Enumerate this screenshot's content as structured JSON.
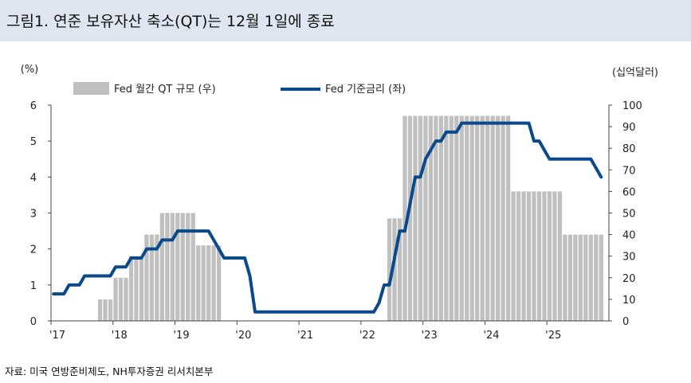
{
  "title": "그림1. 연준 보유자산 축소(QT)는 12월 1일에 종료",
  "source": "자료: 미국 연방준비제도, NH투자증권 리서치본부",
  "colors": {
    "title_bg": "#dfe6ef",
    "bar": "#c0c0c0",
    "line": "#0a4a8c"
  },
  "chart_data": {
    "type": "bar+line",
    "left_axis": {
      "unit": "(%)",
      "ticks": [
        "0",
        "1",
        "2",
        "3",
        "4",
        "5",
        "6"
      ],
      "ylim": [
        0,
        6
      ]
    },
    "right_axis": {
      "unit": "(십억달러)",
      "ticks": [
        "0",
        "10",
        "20",
        "30",
        "40",
        "50",
        "60",
        "70",
        "80",
        "90",
        "100"
      ],
      "ylim": [
        0,
        100
      ]
    },
    "x_ticks": [
      "'17",
      "'18",
      "'19",
      "'20",
      "'21",
      "'22",
      "'23",
      "'24",
      "'25"
    ],
    "grid": false,
    "legend_position": "top",
    "series": [
      {
        "name": "Fed 월간 QT 규모 (우)",
        "type": "bar",
        "axis": "right",
        "points": [
          {
            "x": "2017-10",
            "y": 10
          },
          {
            "x": "2017-11",
            "y": 10
          },
          {
            "x": "2017-12",
            "y": 10
          },
          {
            "x": "2018-01",
            "y": 20
          },
          {
            "x": "2018-02",
            "y": 20
          },
          {
            "x": "2018-03",
            "y": 20
          },
          {
            "x": "2018-04",
            "y": 30
          },
          {
            "x": "2018-05",
            "y": 30
          },
          {
            "x": "2018-06",
            "y": 30
          },
          {
            "x": "2018-07",
            "y": 40
          },
          {
            "x": "2018-08",
            "y": 40
          },
          {
            "x": "2018-09",
            "y": 40
          },
          {
            "x": "2018-10",
            "y": 50
          },
          {
            "x": "2018-11",
            "y": 50
          },
          {
            "x": "2018-12",
            "y": 50
          },
          {
            "x": "2019-01",
            "y": 50
          },
          {
            "x": "2019-02",
            "y": 50
          },
          {
            "x": "2019-03",
            "y": 50
          },
          {
            "x": "2019-04",
            "y": 50
          },
          {
            "x": "2019-05",
            "y": 35
          },
          {
            "x": "2019-06",
            "y": 35
          },
          {
            "x": "2019-07",
            "y": 35
          },
          {
            "x": "2019-08",
            "y": 35
          },
          {
            "x": "2019-09",
            "y": 35
          },
          {
            "x": "2022-06",
            "y": 47.5
          },
          {
            "x": "2022-07",
            "y": 47.5
          },
          {
            "x": "2022-08",
            "y": 47.5
          },
          {
            "x": "2022-09",
            "y": 95
          },
          {
            "x": "2022-10",
            "y": 95
          },
          {
            "x": "2022-11",
            "y": 95
          },
          {
            "x": "2022-12",
            "y": 95
          },
          {
            "x": "2023-01",
            "y": 95
          },
          {
            "x": "2023-02",
            "y": 95
          },
          {
            "x": "2023-03",
            "y": 95
          },
          {
            "x": "2023-04",
            "y": 95
          },
          {
            "x": "2023-05",
            "y": 95
          },
          {
            "x": "2023-06",
            "y": 95
          },
          {
            "x": "2023-07",
            "y": 95
          },
          {
            "x": "2023-08",
            "y": 95
          },
          {
            "x": "2023-09",
            "y": 95
          },
          {
            "x": "2023-10",
            "y": 95
          },
          {
            "x": "2023-11",
            "y": 95
          },
          {
            "x": "2023-12",
            "y": 95
          },
          {
            "x": "2024-01",
            "y": 95
          },
          {
            "x": "2024-02",
            "y": 95
          },
          {
            "x": "2024-03",
            "y": 95
          },
          {
            "x": "2024-04",
            "y": 95
          },
          {
            "x": "2024-05",
            "y": 95
          },
          {
            "x": "2024-06",
            "y": 60
          },
          {
            "x": "2024-07",
            "y": 60
          },
          {
            "x": "2024-08",
            "y": 60
          },
          {
            "x": "2024-09",
            "y": 60
          },
          {
            "x": "2024-10",
            "y": 60
          },
          {
            "x": "2024-11",
            "y": 60
          },
          {
            "x": "2024-12",
            "y": 60
          },
          {
            "x": "2025-01",
            "y": 60
          },
          {
            "x": "2025-02",
            "y": 60
          },
          {
            "x": "2025-03",
            "y": 60
          },
          {
            "x": "2025-04",
            "y": 40
          },
          {
            "x": "2025-05",
            "y": 40
          },
          {
            "x": "2025-06",
            "y": 40
          },
          {
            "x": "2025-07",
            "y": 40
          },
          {
            "x": "2025-08",
            "y": 40
          },
          {
            "x": "2025-09",
            "y": 40
          },
          {
            "x": "2025-10",
            "y": 40
          },
          {
            "x": "2025-11",
            "y": 40
          }
        ]
      },
      {
        "name": "Fed 기준금리 (좌)",
        "type": "line",
        "axis": "left",
        "points": [
          {
            "x": "2017-01",
            "y": 0.75
          },
          {
            "x": "2017-03",
            "y": 0.75
          },
          {
            "x": "2017-04",
            "y": 1.0
          },
          {
            "x": "2017-06",
            "y": 1.0
          },
          {
            "x": "2017-07",
            "y": 1.25
          },
          {
            "x": "2017-12",
            "y": 1.25
          },
          {
            "x": "2018-01",
            "y": 1.5
          },
          {
            "x": "2018-03",
            "y": 1.5
          },
          {
            "x": "2018-04",
            "y": 1.75
          },
          {
            "x": "2018-06",
            "y": 1.75
          },
          {
            "x": "2018-07",
            "y": 2.0
          },
          {
            "x": "2018-09",
            "y": 2.0
          },
          {
            "x": "2018-10",
            "y": 2.25
          },
          {
            "x": "2018-12",
            "y": 2.25
          },
          {
            "x": "2019-01",
            "y": 2.5
          },
          {
            "x": "2019-07",
            "y": 2.5
          },
          {
            "x": "2019-08",
            "y": 2.25
          },
          {
            "x": "2019-09",
            "y": 2.0
          },
          {
            "x": "2019-10",
            "y": 1.75
          },
          {
            "x": "2020-02",
            "y": 1.75
          },
          {
            "x": "2020-03",
            "y": 1.25
          },
          {
            "x": "2020-04",
            "y": 0.25
          },
          {
            "x": "2022-03",
            "y": 0.25
          },
          {
            "x": "2022-04",
            "y": 0.5
          },
          {
            "x": "2022-05",
            "y": 1.0
          },
          {
            "x": "2022-06",
            "y": 1.0
          },
          {
            "x": "2022-07",
            "y": 1.75
          },
          {
            "x": "2022-08",
            "y": 2.5
          },
          {
            "x": "2022-09",
            "y": 2.5
          },
          {
            "x": "2022-10",
            "y": 3.25
          },
          {
            "x": "2022-11",
            "y": 4.0
          },
          {
            "x": "2022-12",
            "y": 4.0
          },
          {
            "x": "2023-01",
            "y": 4.5
          },
          {
            "x": "2023-02",
            "y": 4.75
          },
          {
            "x": "2023-03",
            "y": 5.0
          },
          {
            "x": "2023-04",
            "y": 5.0
          },
          {
            "x": "2023-05",
            "y": 5.25
          },
          {
            "x": "2023-07",
            "y": 5.25
          },
          {
            "x": "2023-08",
            "y": 5.5
          },
          {
            "x": "2024-09",
            "y": 5.5
          },
          {
            "x": "2024-10",
            "y": 5.0
          },
          {
            "x": "2024-11",
            "y": 5.0
          },
          {
            "x": "2024-12",
            "y": 4.75
          },
          {
            "x": "2025-01",
            "y": 4.5
          },
          {
            "x": "2025-09",
            "y": 4.5
          },
          {
            "x": "2025-10",
            "y": 4.25
          },
          {
            "x": "2025-11",
            "y": 4.0
          }
        ]
      }
    ]
  }
}
